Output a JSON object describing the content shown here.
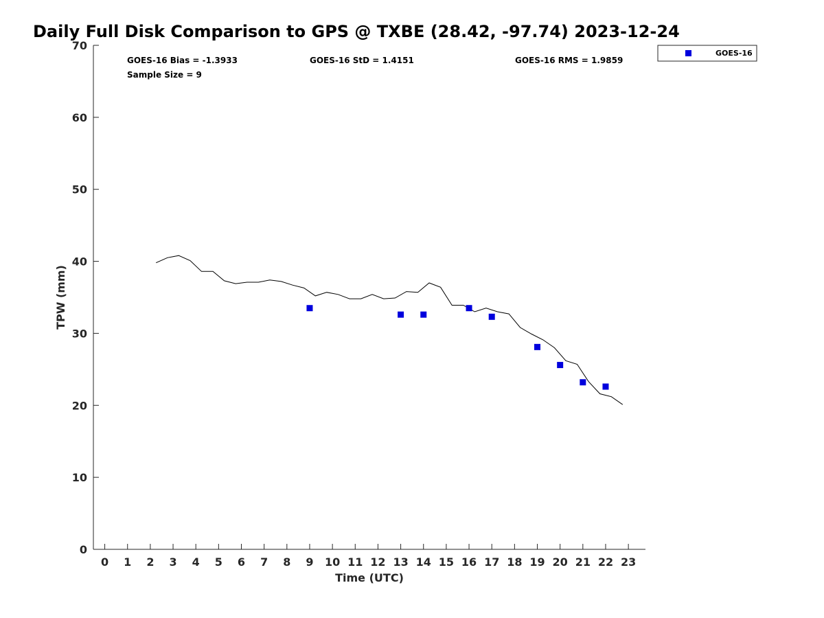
{
  "chart_data": {
    "type": "scatter",
    "title": "Daily Full Disk Comparison to GPS @ TXBE (28.42, -97.74) 2023-12-24",
    "xlabel": "Time (UTC)",
    "ylabel": "TPW (mm)",
    "xlim": [
      -0.5,
      23.75
    ],
    "ylim": [
      0,
      70
    ],
    "x_ticks": [
      "0",
      "1",
      "2",
      "3",
      "4",
      "5",
      "6",
      "7",
      "8",
      "9",
      "10",
      "11",
      "12",
      "13",
      "14",
      "15",
      "16",
      "17",
      "18",
      "19",
      "20",
      "21",
      "22",
      "23"
    ],
    "y_ticks": [
      "0",
      "10",
      "20",
      "30",
      "40",
      "50",
      "60",
      "70"
    ],
    "grid": false,
    "legend_position": "top-right",
    "stats": {
      "bias": "GOES-16 Bias = -1.3933",
      "std": "GOES-16 StD = 1.4151",
      "rms": "GOES-16 RMS = 1.9859",
      "sample": "Sample Size = 9"
    },
    "series": [
      {
        "name": "GOES-16",
        "kind": "scatter",
        "color": "#0000dd",
        "x": [
          9,
          13,
          14,
          16,
          17,
          19,
          20,
          21,
          22
        ],
        "y": [
          33.5,
          32.6,
          32.6,
          33.5,
          32.3,
          28.1,
          25.6,
          23.2,
          22.6
        ]
      },
      {
        "kind": "line",
        "color": "#000000",
        "x": [
          2.25,
          2.75,
          3.25,
          3.75,
          4.25,
          4.75,
          5.25,
          5.75,
          6.25,
          6.75,
          7.25,
          7.75,
          8.25,
          8.75,
          9.25,
          9.75,
          10.25,
          10.75,
          11.25,
          11.75,
          12.25,
          12.75,
          13.25,
          13.75,
          14.25,
          14.75,
          15.25,
          15.75,
          16.25,
          16.75,
          17.25,
          17.75,
          18.25,
          18.75,
          19.25,
          19.75,
          20.25,
          20.75,
          21.25,
          21.75,
          22.25,
          22.75
        ],
        "y": [
          39.8,
          40.5,
          40.8,
          40.1,
          38.6,
          38.6,
          37.3,
          36.9,
          37.1,
          37.1,
          37.4,
          37.2,
          36.7,
          36.3,
          35.2,
          35.7,
          35.4,
          34.8,
          34.8,
          35.4,
          34.8,
          34.9,
          35.8,
          35.7,
          37.0,
          36.4,
          33.9,
          33.9,
          33.0,
          33.5,
          33.0,
          32.7,
          30.8,
          29.9,
          29.1,
          28.0,
          26.2,
          25.7,
          23.3,
          21.6,
          21.2,
          20.1
        ]
      }
    ]
  }
}
